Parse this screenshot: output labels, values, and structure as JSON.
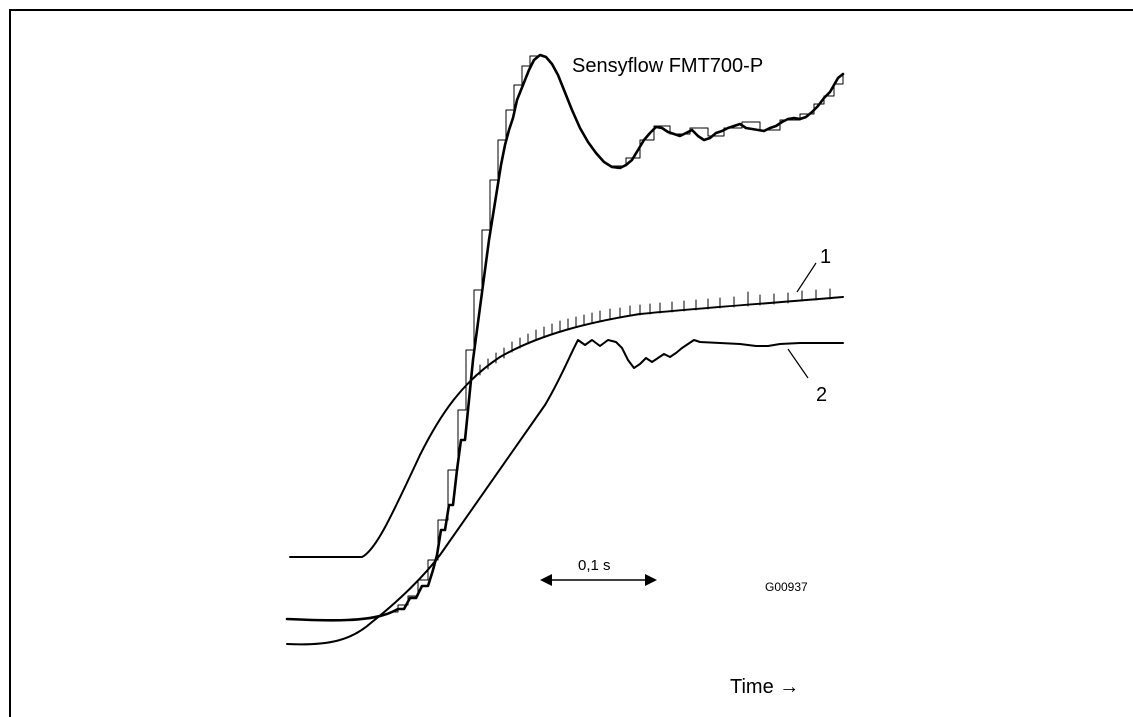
{
  "device_label": "Sensyflow FMT700-P",
  "curve_labels": [
    "1",
    "2"
  ],
  "scale_bar_label": "0,1 s",
  "figure_code": "G00937",
  "x_axis_label": "Time →"
}
